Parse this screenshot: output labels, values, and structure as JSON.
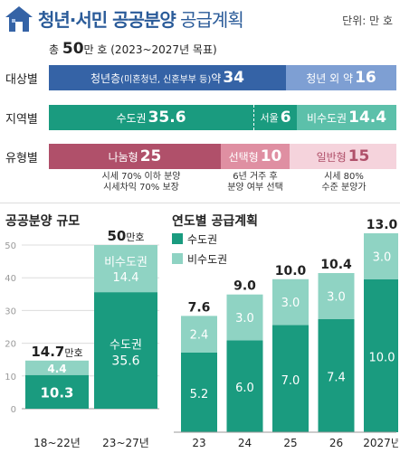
{
  "header": {
    "title_bold": "청년·서민 공공분양",
    "title_light": " 공급계획",
    "unit": "단위: 만 호"
  },
  "summary": {
    "total_prefix": "총 ",
    "total_value": "50",
    "total_unit": "만 호",
    "period": " (2023~2027년 목표)"
  },
  "rows": [
    {
      "label": "대상별",
      "segments": [
        {
          "text": "청년층",
          "small": "(미혼청년, 신혼부부 등)",
          "suffix": " 약 ",
          "value": "34",
          "color": "#3563a6"
        },
        {
          "text": "청년 외 약 ",
          "small": "",
          "suffix": "",
          "value": "16",
          "color": "#7e9fd3"
        }
      ]
    },
    {
      "label": "지역별",
      "segments": [
        {
          "text": "수도권 ",
          "value": "35.6",
          "color": "#1a9b7f"
        },
        {
          "text": "서울 ",
          "value": "6",
          "color": "#1a9b7f"
        },
        {
          "text": "비수도권 ",
          "value": "14.4",
          "color": "#5cc0aa"
        }
      ]
    },
    {
      "label": "유형별",
      "segments": [
        {
          "text": "나눔형 ",
          "value": "25",
          "color": "#b0506a",
          "note": [
            "시세 70% 이하 분양",
            "시세차익 70% 보장"
          ]
        },
        {
          "text": "선택형 ",
          "value": "10",
          "color": "#df8fa2",
          "note": [
            "6년 거주 후",
            "분양 여부 선택"
          ]
        },
        {
          "text": "일반형 ",
          "value": "15",
          "color": "#f5d3dc",
          "note": [
            "시세 80%",
            "수준 분양가"
          ]
        }
      ]
    }
  ],
  "colors": {
    "capital": "#1a9b7f",
    "non_capital": "#8fd3c3",
    "grid": "#dcdcdc",
    "axis_text": "#9a9a9a"
  },
  "chart_data": [
    {
      "type": "bar",
      "title": "공공분양 규모",
      "categories": [
        "18~22년",
        "23~27년"
      ],
      "series": [
        {
          "name": "수도권",
          "values": [
            10.3,
            35.6
          ]
        },
        {
          "name": "비수도권",
          "values": [
            4.4,
            14.4
          ]
        }
      ],
      "totals": [
        {
          "value": "14.7",
          "unit": "만호"
        },
        {
          "value": "50",
          "unit": "만호"
        }
      ],
      "inner_labels": [
        "수도권",
        "비수도권"
      ],
      "yticks": [
        0,
        10,
        20,
        30,
        40,
        50
      ],
      "ylim": [
        0,
        50
      ],
      "grid": true
    },
    {
      "type": "bar",
      "title": "연도별 공급계획",
      "categories": [
        "23",
        "24",
        "25",
        "26",
        "2027년"
      ],
      "series": [
        {
          "name": "수도권",
          "values": [
            5.2,
            6.0,
            7.0,
            7.4,
            10.0
          ]
        },
        {
          "name": "비수도권",
          "values": [
            2.4,
            3.0,
            3.0,
            3.0,
            3.0
          ]
        }
      ],
      "totals": [
        "7.6",
        "9.0",
        "10.0",
        "10.4",
        "13.0"
      ],
      "labels_capital": [
        "5.2",
        "6.0",
        "7.0",
        "7.4",
        "10.0"
      ],
      "labels_non_capital": [
        "2.4",
        "3.0",
        "3.0",
        "3.0",
        "3.0"
      ],
      "legend": [
        "수도권",
        "비수도권"
      ],
      "legend_position": "top-left",
      "ylim": [
        0,
        13
      ]
    }
  ]
}
